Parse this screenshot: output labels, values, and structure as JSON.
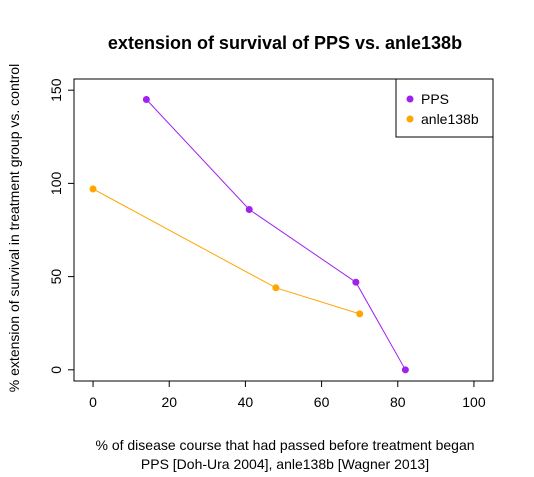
{
  "chart_data": {
    "type": "line",
    "title": "extension of survival of PPS vs. anle138b",
    "xlabel": "% of disease course that had passed before treatment began",
    "xlabel_line2": "PPS [Doh-Ura 2004], anle138b [Wagner 2013]",
    "ylabel": "% extension of survival in treatment group vs. control",
    "xlim": [
      -5,
      105
    ],
    "ylim": [
      -6,
      156
    ],
    "x_ticks": [
      0,
      20,
      40,
      60,
      80,
      100
    ],
    "y_ticks": [
      0,
      50,
      100,
      150
    ],
    "grid": false,
    "legend_position": "top-right",
    "series": [
      {
        "name": "PPS",
        "color": "#a020f0",
        "points": [
          [
            14,
            145
          ],
          [
            41,
            86
          ],
          [
            69,
            47
          ],
          [
            82,
            0
          ]
        ]
      },
      {
        "name": "anle138b",
        "color": "#ffa500",
        "points": [
          [
            0,
            97
          ],
          [
            48,
            44
          ],
          [
            70,
            30
          ]
        ]
      }
    ]
  }
}
